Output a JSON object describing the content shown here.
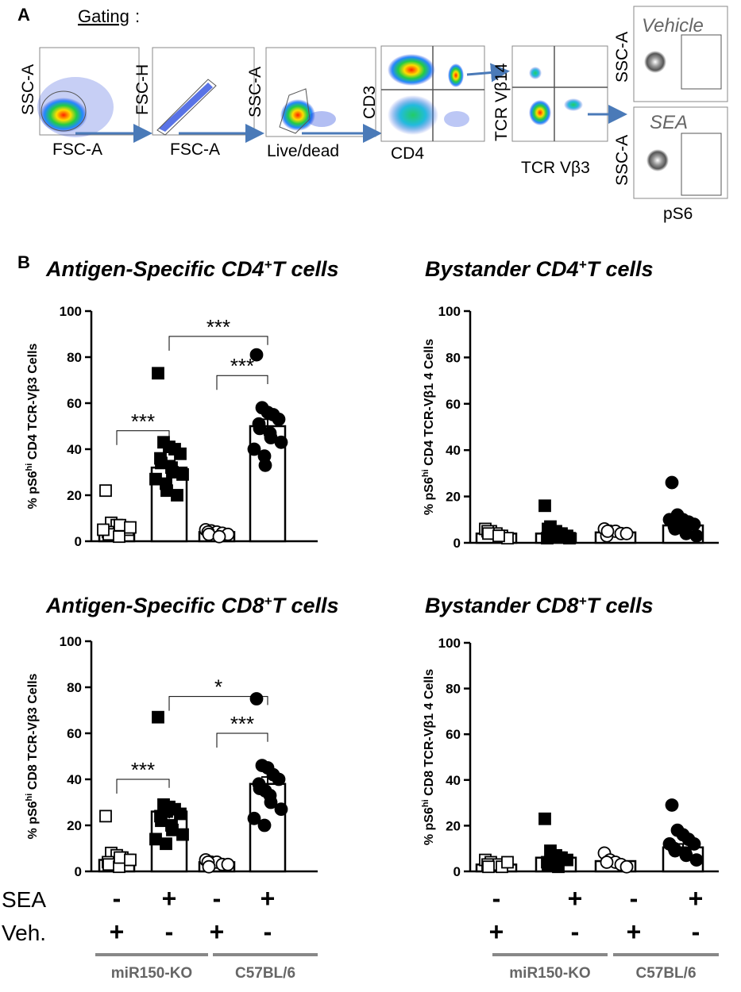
{
  "panel_a": {
    "letter": "A",
    "gating_title": "Gating",
    "gating_colon": ":",
    "plots": [
      {
        "y": "SSC-A",
        "x": "FSC-A"
      },
      {
        "y": "FSC-H",
        "x": "FSC-A"
      },
      {
        "y": "SSC-A",
        "x": "Live/dead"
      },
      {
        "y": "CD3",
        "x": "CD4"
      },
      {
        "y": "TCR Vβ14",
        "x": "TCR Vβ3"
      }
    ],
    "final_plots": [
      {
        "y": "SSC-A",
        "condition": "Vehicle"
      },
      {
        "y": "SSC-A",
        "condition": "SEA"
      }
    ],
    "final_x": "pS6"
  },
  "panel_b": {
    "letter": "B",
    "conditions": {
      "row1_label": "SEA",
      "row2_label": "Veh.",
      "sea": [
        "-",
        "+",
        "-",
        "+"
      ],
      "veh": [
        "+",
        "-",
        "+",
        "-"
      ],
      "groups": [
        "miR150-KO",
        "C57BL/6"
      ]
    }
  },
  "chart_data": [
    {
      "type": "bar",
      "title_main": "Antigen-Specific CD4",
      "title_sup": "+",
      "title_end": "T cells",
      "ylabel_pre": "% pS6",
      "ylabel_sup": "hi",
      "ylabel_post": " CD4 TCR-Vβ3 Cells",
      "yticks": [
        "0",
        "20",
        "40",
        "60",
        "80",
        "100"
      ],
      "ylim": [
        0,
        100
      ],
      "markers": [
        "open-square",
        "filled-square",
        "open-circle",
        "filled-circle"
      ],
      "values": [
        6,
        32,
        4,
        50
      ],
      "errors": [
        1.5,
        3,
        0.6,
        3
      ],
      "points": [
        [
          22,
          8,
          7,
          6,
          5,
          4,
          3,
          2,
          7,
          6,
          5
        ],
        [
          73,
          43,
          41,
          40,
          38,
          36,
          34,
          32,
          30,
          29,
          27,
          25,
          22,
          20
        ],
        [
          5,
          4.5,
          4,
          3.5,
          3,
          4,
          3,
          2
        ],
        [
          81,
          58,
          56,
          55,
          53,
          51,
          49,
          47,
          45,
          43,
          40,
          37,
          33
        ]
      ],
      "significance": [
        {
          "from": 0,
          "to": 1,
          "label": "***",
          "y": 48
        },
        {
          "from": 2,
          "to": 3,
          "label": "***",
          "y": 72
        },
        {
          "from": 1,
          "to": 3,
          "label": "***",
          "y": 89
        }
      ]
    },
    {
      "type": "bar",
      "title_main": "Bystander CD4",
      "title_sup": "+",
      "title_end": "T cells",
      "ylabel_pre": "% pS6",
      "ylabel_sup": "hi",
      "ylabel_post": " CD4 TCR-Vβ1 4 Cells",
      "yticks": [
        "0",
        "20",
        "40",
        "60",
        "80",
        "100"
      ],
      "ylim": [
        0,
        100
      ],
      "markers": [
        "open-square",
        "filled-square",
        "open-circle",
        "filled-circle"
      ],
      "values": [
        4,
        4,
        4.5,
        7.5
      ],
      "errors": [
        0.5,
        1,
        0.5,
        1.5
      ],
      "points": [
        [
          6,
          5,
          4,
          3,
          2,
          5,
          4,
          3
        ],
        [
          16,
          7,
          5,
          4,
          3,
          2,
          6,
          4,
          3,
          2
        ],
        [
          6,
          5,
          5,
          4,
          4,
          3,
          5
        ],
        [
          26,
          12,
          10,
          9,
          8,
          7,
          6,
          5,
          4,
          3,
          10
        ]
      ],
      "significance": []
    },
    {
      "type": "bar",
      "title_main": "Antigen-Specific CD8",
      "title_sup": "+",
      "title_end": "T cells",
      "ylabel_pre": "% pS6",
      "ylabel_sup": "hi",
      "ylabel_post": " CD8 TCR-Vβ3 Cells",
      "yticks": [
        "0",
        "20",
        "40",
        "60",
        "80",
        "100"
      ],
      "ylim": [
        0,
        100
      ],
      "markers": [
        "open-square",
        "filled-square",
        "open-circle",
        "filled-circle"
      ],
      "values": [
        5,
        26,
        4,
        38
      ],
      "errors": [
        1.5,
        3,
        0.6,
        3
      ],
      "points": [
        [
          24,
          8,
          7,
          6,
          5,
          4,
          3,
          2,
          6,
          5
        ],
        [
          67,
          29,
          28,
          27,
          25,
          24,
          22,
          20,
          18,
          16,
          14,
          12,
          26
        ],
        [
          5,
          4,
          4,
          3,
          3,
          4,
          2
        ],
        [
          75,
          46,
          45,
          42,
          40,
          38,
          36,
          33,
          30,
          27,
          23,
          20,
          35
        ]
      ],
      "significance": [
        {
          "from": 0,
          "to": 1,
          "label": "***",
          "y": 40
        },
        {
          "from": 2,
          "to": 3,
          "label": "***",
          "y": 60
        },
        {
          "from": 1,
          "to": 3,
          "label": "*",
          "y": 76
        }
      ]
    },
    {
      "type": "bar",
      "title_main": "Bystander CD8",
      "title_sup": "+",
      "title_end": "T cells",
      "ylabel_pre": "% pS6",
      "ylabel_sup": "hi",
      "ylabel_post": " CD8 TCR-Vβ1 4 Cells",
      "yticks": [
        "0",
        "20",
        "40",
        "60",
        "80",
        "100"
      ],
      "ylim": [
        0,
        100
      ],
      "markers": [
        "open-square",
        "filled-square",
        "open-circle",
        "filled-circle"
      ],
      "values": [
        3,
        6,
        4.5,
        10.5
      ],
      "errors": [
        0.5,
        1.5,
        0.5,
        1.5
      ],
      "points": [
        [
          5,
          4,
          3,
          2,
          4,
          3,
          2
        ],
        [
          23,
          9,
          7,
          6,
          5,
          4,
          3,
          2,
          6
        ],
        [
          8,
          5,
          4,
          3,
          2,
          4
        ],
        [
          29,
          18,
          16,
          14,
          12,
          10,
          9,
          8,
          7,
          5,
          12
        ]
      ],
      "significance": []
    }
  ]
}
